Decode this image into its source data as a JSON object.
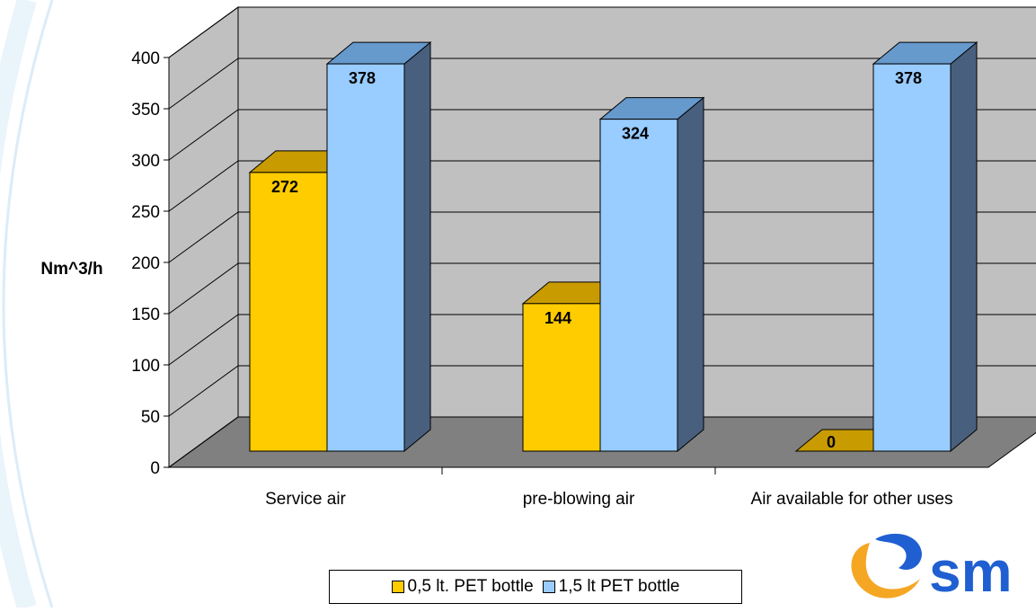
{
  "colors": {
    "series1": "#ffcc00",
    "series1_top": "#c89b00",
    "series2": "#99ccff",
    "series2_top": "#6699cc",
    "series2_side": "#48607e",
    "wall": "#c0c0c0",
    "floor": "#808080",
    "logo_orange": "#f5a623",
    "logo_blue": "#1f5fd1"
  },
  "chart_data": {
    "type": "bar",
    "subtype": "3d-clustered",
    "categories": [
      "Service air",
      "pre-blowing air",
      "Air available for other uses"
    ],
    "series": [
      {
        "name": "0,5 lt. PET bottle",
        "values": [
          272,
          144,
          0
        ]
      },
      {
        "name": "1,5 lt PET bottle",
        "values": [
          378,
          324,
          378
        ]
      }
    ],
    "data_labels": [
      [
        "272",
        "144",
        "0"
      ],
      [
        "378",
        "324",
        "378"
      ]
    ],
    "ylabel": "Nm^3/h",
    "ylim": [
      0,
      400
    ],
    "yticks": [
      "0",
      "50",
      "100",
      "150",
      "200",
      "250",
      "300",
      "350",
      "400"
    ],
    "grid": true,
    "legend": "bottom"
  },
  "legend": {
    "item1": "0,5 lt. PET bottle",
    "item2": "1,5 lt PET bottle"
  },
  "logo": {
    "text": "sm",
    "icon": "logo-swoosh-icon"
  }
}
